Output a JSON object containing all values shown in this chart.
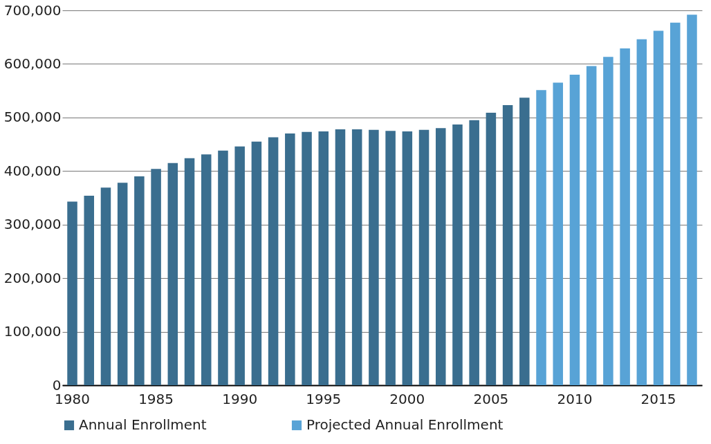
{
  "chart_data": {
    "type": "bar",
    "categories": [
      "1980",
      null,
      null,
      null,
      null,
      "1985",
      null,
      null,
      null,
      null,
      "1990",
      null,
      null,
      null,
      null,
      "1995",
      null,
      null,
      null,
      null,
      "2000",
      null,
      null,
      null,
      null,
      "2005",
      null,
      null,
      null,
      null,
      "2010",
      null,
      null,
      null,
      null,
      "2015",
      null,
      null
    ],
    "series": [
      {
        "name": "Annual Enrollment",
        "color": "#3a6e8f",
        "values": [
          343000,
          354000,
          369000,
          378000,
          390000,
          404000,
          415000,
          424000,
          431000,
          438000,
          446000,
          455000,
          463000,
          470000,
          473000,
          474000,
          478000,
          478000,
          477000,
          475000,
          474000,
          477000,
          480000,
          487000,
          495000,
          509000,
          523000,
          537000,
          null,
          null,
          null,
          null,
          null,
          null,
          null,
          null,
          null,
          null
        ]
      },
      {
        "name": "Projected Annual Enrollment",
        "color": "#58a3d6",
        "values": [
          null,
          null,
          null,
          null,
          null,
          null,
          null,
          null,
          null,
          null,
          null,
          null,
          null,
          null,
          null,
          null,
          null,
          null,
          null,
          null,
          null,
          null,
          null,
          null,
          null,
          null,
          null,
          null,
          551000,
          565000,
          580000,
          596000,
          613000,
          629000,
          646000,
          662000,
          677000,
          692000
        ]
      }
    ],
    "ylim": [
      0,
      700000
    ],
    "yticks": [
      0,
      {
        "value": 100000,
        "label": "100,000"
      },
      {
        "value": 200000,
        "label": "200,000"
      },
      {
        "value": 300000,
        "label": "300,000"
      },
      {
        "value": 400000,
        "label": "400,000"
      },
      {
        "value": 500000,
        "label": "500,000"
      },
      {
        "value": 600000,
        "label": "600,000"
      },
      {
        "value": 700000,
        "label": "700,000"
      }
    ],
    "grid": "y",
    "legend": "bottom"
  }
}
